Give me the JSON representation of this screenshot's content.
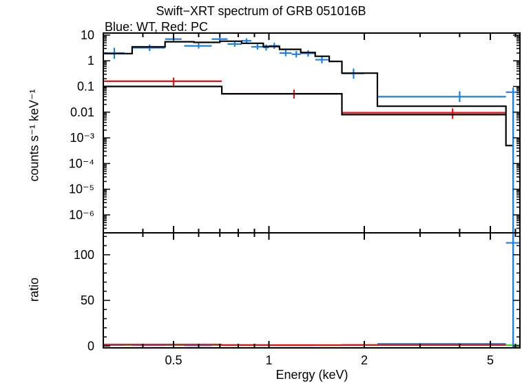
{
  "title": "Swift−XRT spectrum of GRB 051016B",
  "subtitle": "Blue: WT, Red: PC",
  "chart_data": [
    {
      "type": "step",
      "panel": "spectrum",
      "ylabel": "counts s⁻¹ keV⁻¹",
      "y_scale": "log",
      "xlim": [
        0.3,
        6.2
      ],
      "ylim": [
        2e-07,
        12
      ],
      "x_scale": "log",
      "y_ticks": [
        {
          "value": 10,
          "label": "10"
        },
        {
          "value": 1,
          "label": "1"
        },
        {
          "value": 0.1,
          "label": "0.1"
        },
        {
          "value": 0.01,
          "label": "0.01"
        },
        {
          "value": 0.001,
          "label": "10⁻³"
        },
        {
          "value": 0.0001,
          "label": "10⁻⁴"
        },
        {
          "value": 1e-05,
          "label": "10⁻⁵"
        },
        {
          "value": 1e-06,
          "label": "10⁻⁶"
        }
      ],
      "series": [
        {
          "color": "#1a7fe6",
          "kind": "data",
          "points": [
            {
              "x": 0.325,
              "xlo": 0.3,
              "xhi": 0.35,
              "y": 2.0,
              "ylo": 1.2,
              "yhi": 3.2
            },
            {
              "x": 0.42,
              "xlo": 0.37,
              "xhi": 0.47,
              "y": 3.2,
              "ylo": 2.4,
              "yhi": 4.3
            },
            {
              "x": 0.5,
              "xlo": 0.47,
              "xhi": 0.53,
              "y": 7.0,
              "ylo": 5.5,
              "yhi": 9.0
            },
            {
              "x": 0.6,
              "xlo": 0.54,
              "xhi": 0.66,
              "y": 3.8,
              "ylo": 3.0,
              "yhi": 4.8
            },
            {
              "x": 0.7,
              "xlo": 0.66,
              "xhi": 0.74,
              "y": 7.0,
              "ylo": 5.8,
              "yhi": 8.4
            },
            {
              "x": 0.78,
              "xlo": 0.74,
              "xhi": 0.82,
              "y": 4.5,
              "ylo": 3.5,
              "yhi": 5.8
            },
            {
              "x": 0.85,
              "xlo": 0.82,
              "xhi": 0.88,
              "y": 6.0,
              "ylo": 4.8,
              "yhi": 7.5
            },
            {
              "x": 0.92,
              "xlo": 0.88,
              "xhi": 0.96,
              "y": 3.5,
              "ylo": 2.7,
              "yhi": 4.5
            },
            {
              "x": 0.98,
              "xlo": 0.96,
              "xhi": 1.0,
              "y": 3.3,
              "ylo": 2.5,
              "yhi": 4.3
            },
            {
              "x": 1.04,
              "xlo": 1.0,
              "xhi": 1.08,
              "y": 3.8,
              "ylo": 2.9,
              "yhi": 5.0
            },
            {
              "x": 1.13,
              "xlo": 1.08,
              "xhi": 1.18,
              "y": 2.0,
              "ylo": 1.5,
              "yhi": 2.6
            },
            {
              "x": 1.22,
              "xlo": 1.18,
              "xhi": 1.26,
              "y": 1.8,
              "ylo": 1.35,
              "yhi": 2.4
            },
            {
              "x": 1.33,
              "xlo": 1.26,
              "xhi": 1.4,
              "y": 1.95,
              "ylo": 1.45,
              "yhi": 2.6
            },
            {
              "x": 1.47,
              "xlo": 1.4,
              "xhi": 1.55,
              "y": 1.1,
              "ylo": 0.8,
              "yhi": 1.5
            },
            {
              "x": 1.85,
              "xlo": 1.7,
              "xhi": 2.0,
              "y": 0.32,
              "ylo": 0.2,
              "yhi": 0.5
            },
            {
              "x": 4.0,
              "xlo": 2.2,
              "xhi": 5.6,
              "y": 0.04,
              "ylo": 0.025,
              "yhi": 0.065
            },
            {
              "x": 5.9,
              "xlo": 5.6,
              "xhi": 6.2,
              "y": 0.06,
              "ylo": 0.0,
              "yhi": 0.09
            }
          ]
        },
        {
          "color": "#e81010",
          "kind": "data",
          "points": [
            {
              "x": 0.5,
              "xlo": 0.3,
              "xhi": 0.71,
              "y": 0.16,
              "ylo": 0.11,
              "yhi": 0.22
            },
            {
              "x": 1.2,
              "xlo": 0.71,
              "xhi": 1.7,
              "y": 0.052,
              "ylo": 0.034,
              "yhi": 0.075
            },
            {
              "x": 3.8,
              "xlo": 1.7,
              "xhi": 5.6,
              "y": 0.0095,
              "ylo": 0.0055,
              "yhi": 0.014
            }
          ]
        },
        {
          "color": "#000000",
          "kind": "model",
          "edges": [
            0.3,
            0.37,
            0.47,
            0.58,
            0.7,
            0.82,
            0.96,
            1.08,
            1.26,
            1.4,
            1.55,
            1.7,
            2.2,
            5.6,
            5.88
          ],
          "values": [
            1.9,
            3.5,
            5.5,
            5.2,
            5.8,
            4.8,
            3.6,
            2.8,
            2.1,
            1.5,
            0.95,
            0.33,
            0.017,
            0.0005
          ]
        },
        {
          "color": "#000000",
          "kind": "model",
          "edges": [
            0.3,
            0.71,
            1.7,
            5.6
          ],
          "values": [
            0.1,
            0.052,
            0.008
          ]
        }
      ]
    },
    {
      "type": "step",
      "panel": "ratio",
      "ylabel": "ratio",
      "y_scale": "linear",
      "xlabel": "Energy (keV)",
      "xlim": [
        0.3,
        6.2
      ],
      "ylim": [
        -2,
        124
      ],
      "x_scale": "log",
      "x_ticks": [
        {
          "value": 0.5,
          "label": "0.5"
        },
        {
          "value": 1,
          "label": "1"
        },
        {
          "value": 2,
          "label": "2"
        },
        {
          "value": 5,
          "label": "5"
        }
      ],
      "y_ticks": [
        {
          "value": 0,
          "label": "0"
        },
        {
          "value": 50,
          "label": "50"
        },
        {
          "value": 100,
          "label": "100"
        }
      ],
      "reference_line": {
        "y": 1,
        "color": "#22dd22"
      },
      "series": [
        {
          "color": "#1a7fe6",
          "kind": "ratio",
          "points": [
            {
              "x": 0.325,
              "xlo": 0.3,
              "xhi": 0.35,
              "y": 1.1
            },
            {
              "x": 0.42,
              "xlo": 0.37,
              "xhi": 0.47,
              "y": 0.9
            },
            {
              "x": 0.5,
              "xlo": 0.47,
              "xhi": 0.53,
              "y": 1.3
            },
            {
              "x": 0.6,
              "xlo": 0.54,
              "xhi": 0.66,
              "y": 0.7
            },
            {
              "x": 0.85,
              "xlo": 0.7,
              "xhi": 1.0,
              "y": 1.1
            },
            {
              "x": 1.2,
              "xlo": 1.0,
              "xhi": 1.4,
              "y": 0.9
            },
            {
              "x": 1.85,
              "xlo": 1.7,
              "xhi": 2.0,
              "y": 1.0
            },
            {
              "x": 4.0,
              "xlo": 2.2,
              "xhi": 5.6,
              "y": 2.4
            },
            {
              "x": 5.9,
              "xlo": 5.6,
              "xhi": 6.2,
              "y": 113
            }
          ]
        },
        {
          "color": "#e81010",
          "kind": "ratio",
          "points": [
            {
              "x": 0.5,
              "xlo": 0.3,
              "xhi": 0.71,
              "y": 1.6
            },
            {
              "x": 1.2,
              "xlo": 0.71,
              "xhi": 1.7,
              "y": 1.0
            },
            {
              "x": 3.8,
              "xlo": 1.7,
              "xhi": 5.6,
              "y": 1.2
            }
          ]
        }
      ]
    }
  ]
}
